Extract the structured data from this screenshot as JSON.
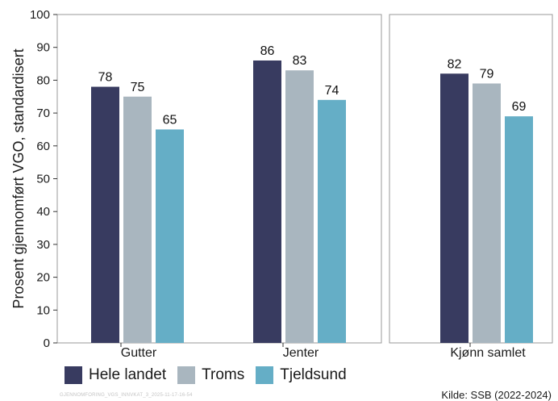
{
  "chart_data": {
    "type": "bar",
    "ylabel": "Prosent gjennomført VGO, standardisert",
    "ylim": [
      0,
      100
    ],
    "yticks": [
      0,
      10,
      20,
      30,
      40,
      50,
      60,
      70,
      80,
      90,
      100
    ],
    "grid": false,
    "legend_position": "bottom-left",
    "series": [
      {
        "name": "Hele landet",
        "color": "#383b60"
      },
      {
        "name": "Troms",
        "color": "#a9b6bf"
      },
      {
        "name": "Tjeldsund",
        "color": "#65aec6"
      }
    ],
    "panels": [
      {
        "categories": [
          "Gutter",
          "Jenter"
        ],
        "values": [
          [
            78,
            75,
            65
          ],
          [
            86,
            83,
            74
          ]
        ]
      },
      {
        "categories": [
          "Kjønn samlet"
        ],
        "values": [
          [
            82,
            79,
            69
          ]
        ]
      }
    ]
  },
  "footer": {
    "watermark": "GJENNOMFORING_VGS_INNVKAT_3_2025-11-17-16-54",
    "source": "Kilde: SSB (2022-2024)"
  }
}
